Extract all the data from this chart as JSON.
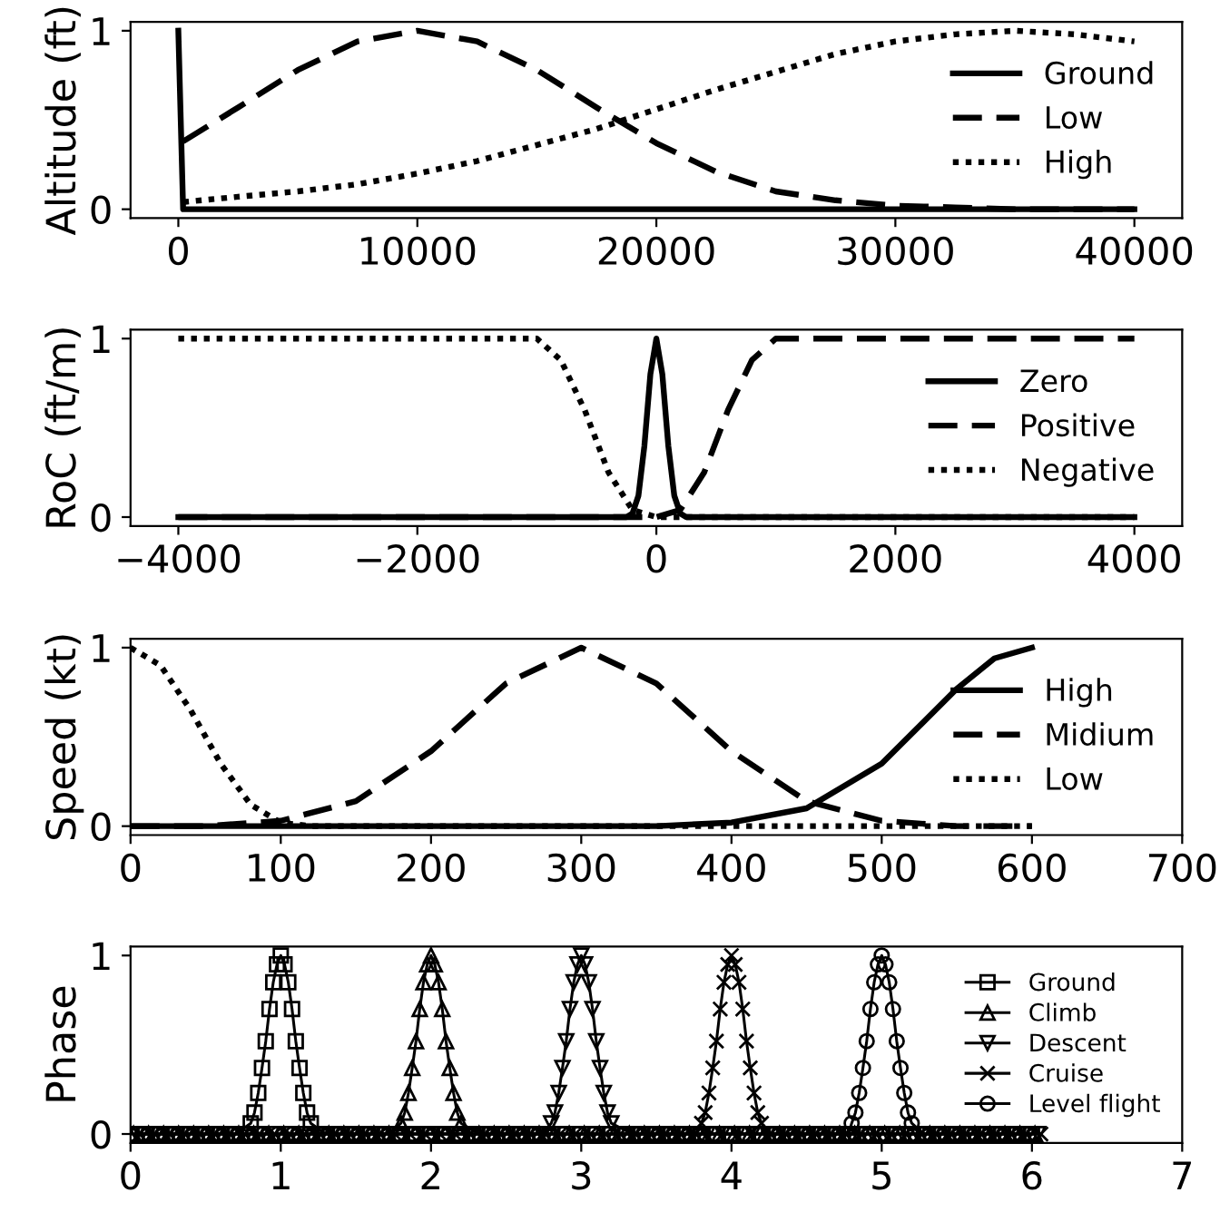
{
  "chart_data": [
    {
      "type": "line",
      "ylabel": "Altitude (ft)",
      "xlim": [
        -2000,
        42000
      ],
      "xticks": [
        0,
        10000,
        20000,
        30000,
        40000
      ],
      "ylim": [
        -0.05,
        1.05
      ],
      "yticks": [
        0,
        1
      ],
      "legend": "center right",
      "grid": false,
      "series": [
        {
          "name": "Ground",
          "color": "#000000",
          "line_style": "solid",
          "x": [
            0,
            200,
            40000
          ],
          "values": [
            1,
            0,
            0
          ]
        },
        {
          "name": "Low",
          "color": "#000000",
          "line_style": "dashed",
          "x": [
            200,
            2500,
            5000,
            7500,
            10000,
            12500,
            15000,
            17500,
            20000,
            22500,
            25000,
            27500,
            30000,
            32500,
            35000,
            40000
          ],
          "values": [
            0.38,
            0.57,
            0.78,
            0.94,
            1,
            0.94,
            0.78,
            0.57,
            0.37,
            0.21,
            0.1,
            0.05,
            0.02,
            0.01,
            0,
            0
          ]
        },
        {
          "name": "High",
          "color": "#000000",
          "line_style": "dotted",
          "x": [
            200,
            2500,
            5000,
            7500,
            10000,
            12500,
            15000,
            17500,
            20000,
            22500,
            25000,
            27500,
            30000,
            32500,
            35000,
            37500,
            40000
          ],
          "values": [
            0.04,
            0.07,
            0.1,
            0.14,
            0.2,
            0.27,
            0.36,
            0.45,
            0.56,
            0.67,
            0.77,
            0.87,
            0.94,
            0.98,
            1,
            0.98,
            0.94
          ]
        }
      ]
    },
    {
      "type": "line",
      "ylabel": "RoC (ft/m)",
      "xlim": [
        -4400,
        4400
      ],
      "xticks": [
        -4000,
        -2000,
        0,
        2000,
        4000
      ],
      "ylim": [
        -0.05,
        1.05
      ],
      "yticks": [
        0,
        1
      ],
      "legend": "center right",
      "grid": false,
      "series": [
        {
          "name": "Zero",
          "color": "#000000",
          "line_style": "solid",
          "x": [
            -4000,
            -250,
            -200,
            -150,
            -100,
            -50,
            0,
            50,
            100,
            150,
            200,
            250,
            4000
          ],
          "values": [
            0,
            0,
            0.02,
            0.12,
            0.4,
            0.8,
            1,
            0.8,
            0.4,
            0.12,
            0.02,
            0,
            0
          ]
        },
        {
          "name": "Positive",
          "color": "#000000",
          "line_style": "dashed",
          "x": [
            -4000,
            0,
            200,
            400,
            600,
            800,
            1000,
            4000
          ],
          "values": [
            0,
            0,
            0.04,
            0.25,
            0.6,
            0.88,
            1,
            1
          ]
        },
        {
          "name": "Negative",
          "color": "#000000",
          "line_style": "dotted",
          "x": [
            -4000,
            -1000,
            -800,
            -600,
            -400,
            -200,
            0,
            4000
          ],
          "values": [
            1,
            1,
            0.88,
            0.6,
            0.25,
            0.04,
            0,
            0
          ]
        }
      ]
    },
    {
      "type": "line",
      "ylabel": "Speed (kt)",
      "xlim": [
        0,
        700
      ],
      "xticks": [
        0,
        100,
        200,
        300,
        400,
        500,
        600,
        700
      ],
      "ylim": [
        -0.05,
        1.05
      ],
      "yticks": [
        0,
        1
      ],
      "legend": "center right",
      "grid": false,
      "series": [
        {
          "name": "High",
          "color": "#000000",
          "line_style": "solid",
          "x": [
            0,
            350,
            400,
            450,
            500,
            525,
            550,
            575,
            600
          ],
          "values": [
            0,
            0,
            0.02,
            0.1,
            0.35,
            0.56,
            0.77,
            0.94,
            1
          ]
        },
        {
          "name": "Midium",
          "color": "#000000",
          "line_style": "dashed",
          "x": [
            0,
            50,
            100,
            150,
            200,
            250,
            300,
            350,
            400,
            450,
            500,
            550,
            600
          ],
          "values": [
            0,
            0,
            0.03,
            0.14,
            0.42,
            0.8,
            1,
            0.8,
            0.42,
            0.14,
            0.03,
            0,
            0
          ]
        },
        {
          "name": "Low",
          "color": "#000000",
          "line_style": "dotted",
          "x": [
            0,
            20,
            40,
            60,
            80,
            100,
            120,
            600
          ],
          "values": [
            1,
            0.9,
            0.65,
            0.35,
            0.12,
            0.02,
            0,
            0
          ]
        }
      ]
    },
    {
      "type": "line",
      "ylabel": "Phase",
      "xlim": [
        0,
        7
      ],
      "xticks": [
        0,
        1,
        2,
        3,
        4,
        5,
        6,
        7
      ],
      "ylim": [
        -0.05,
        1.05
      ],
      "yticks": [
        0,
        1
      ],
      "legend": "center right",
      "grid": false,
      "series": [
        {
          "name": "Ground",
          "color": "#000000",
          "line_style": "solid",
          "marker": "square",
          "x": [
            0,
            0.1,
            0.2,
            0.3,
            0.4,
            0.5,
            0.6,
            0.7,
            0.8,
            0.825,
            0.85,
            0.875,
            0.9,
            0.925,
            0.95,
            0.975,
            1,
            1.025,
            1.05,
            1.075,
            1.1,
            1.125,
            1.15,
            1.175,
            1.2,
            1.3,
            1.4,
            1.5,
            1.6,
            1.7,
            1.8,
            1.9,
            2,
            2.1,
            2.2,
            2.3,
            2.4,
            2.5,
            2.6,
            2.7,
            2.8,
            2.9,
            3,
            3.1,
            3.2,
            3.3,
            3.4,
            3.5,
            3.6,
            3.7,
            3.8,
            3.9,
            4,
            4.1,
            4.2,
            4.3,
            4.4,
            4.5,
            4.6,
            4.7,
            4.8,
            4.9,
            5,
            5.1,
            5.2,
            5.3,
            5.4,
            5.5,
            5.6,
            5.7,
            5.8,
            5.9,
            6
          ],
          "values": [
            0,
            0,
            0,
            0,
            0,
            0,
            0,
            0,
            0.06,
            0.12,
            0.23,
            0.37,
            0.52,
            0.7,
            0.85,
            0.95,
            1,
            0.95,
            0.85,
            0.7,
            0.52,
            0.37,
            0.23,
            0.12,
            0.06,
            0,
            0,
            0,
            0,
            0,
            0,
            0,
            0,
            0,
            0,
            0,
            0,
            0,
            0,
            0,
            0,
            0,
            0,
            0,
            0,
            0,
            0,
            0,
            0,
            0,
            0,
            0,
            0,
            0,
            0,
            0,
            0,
            0,
            0,
            0,
            0,
            0,
            0,
            0,
            0,
            0,
            0,
            0,
            0,
            0,
            0,
            0,
            0
          ]
        },
        {
          "name": "Climb",
          "color": "#000000",
          "line_style": "solid",
          "marker": "triangle",
          "x": [
            0.02,
            0.12,
            0.22,
            0.32,
            0.42,
            0.52,
            0.62,
            0.72,
            0.82,
            0.92,
            1.02,
            1.12,
            1.22,
            1.32,
            1.42,
            1.52,
            1.62,
            1.72,
            1.8,
            1.825,
            1.85,
            1.875,
            1.9,
            1.925,
            1.95,
            1.975,
            2,
            2.025,
            2.05,
            2.075,
            2.1,
            2.125,
            2.15,
            2.175,
            2.2,
            2.32,
            2.42,
            2.52,
            2.62,
            2.72,
            2.82,
            2.92,
            3.02,
            3.12,
            3.22,
            3.32,
            3.42,
            3.52,
            3.62,
            3.72,
            3.82,
            3.92,
            4.02,
            4.12,
            4.22,
            4.32,
            4.42,
            4.52,
            4.62,
            4.72,
            4.82,
            4.92,
            5.02,
            5.12,
            5.22,
            5.32,
            5.42,
            5.52,
            5.62,
            5.72,
            5.82,
            5.92,
            6.02
          ],
          "values": [
            0,
            0,
            0,
            0,
            0,
            0,
            0,
            0,
            0,
            0,
            0,
            0,
            0,
            0,
            0,
            0,
            0,
            0,
            0.06,
            0.12,
            0.23,
            0.37,
            0.52,
            0.7,
            0.85,
            0.95,
            1,
            0.95,
            0.85,
            0.7,
            0.52,
            0.37,
            0.23,
            0.12,
            0.06,
            0,
            0,
            0,
            0,
            0,
            0,
            0,
            0,
            0,
            0,
            0,
            0,
            0,
            0,
            0,
            0,
            0,
            0,
            0,
            0,
            0,
            0,
            0,
            0,
            0,
            0,
            0,
            0,
            0,
            0,
            0,
            0,
            0,
            0,
            0,
            0,
            0,
            0
          ]
        },
        {
          "name": "Descent",
          "color": "#000000",
          "line_style": "solid",
          "marker": "triangle-down",
          "x": [
            0.04,
            0.14,
            0.24,
            0.34,
            0.44,
            0.54,
            0.64,
            0.74,
            0.84,
            0.94,
            1.04,
            1.14,
            1.24,
            1.34,
            1.44,
            1.54,
            1.64,
            1.74,
            1.84,
            1.94,
            2.04,
            2.14,
            2.24,
            2.34,
            2.44,
            2.54,
            2.64,
            2.74,
            2.8,
            2.825,
            2.85,
            2.875,
            2.9,
            2.925,
            2.95,
            2.975,
            3,
            3.025,
            3.05,
            3.075,
            3.1,
            3.125,
            3.15,
            3.175,
            3.2,
            3.34,
            3.44,
            3.54,
            3.64,
            3.74,
            3.84,
            3.94,
            4.04,
            4.14,
            4.24,
            4.34,
            4.44,
            4.54,
            4.64,
            4.74,
            4.84,
            4.94,
            5.04,
            5.14,
            5.24,
            5.34,
            5.44,
            5.54,
            5.64,
            5.74,
            5.84,
            5.94,
            6.04
          ],
          "values": [
            0,
            0,
            0,
            0,
            0,
            0,
            0,
            0,
            0,
            0,
            0,
            0,
            0,
            0,
            0,
            0,
            0,
            0,
            0,
            0,
            0,
            0,
            0,
            0,
            0,
            0,
            0,
            0,
            0.06,
            0.12,
            0.23,
            0.37,
            0.52,
            0.7,
            0.85,
            0.95,
            1,
            0.95,
            0.85,
            0.7,
            0.52,
            0.37,
            0.23,
            0.12,
            0.06,
            0,
            0,
            0,
            0,
            0,
            0,
            0,
            0,
            0,
            0,
            0,
            0,
            0,
            0,
            0,
            0,
            0,
            0,
            0,
            0,
            0,
            0,
            0,
            0,
            0,
            0,
            0,
            0
          ]
        },
        {
          "name": "Cruise",
          "color": "#000000",
          "line_style": "solid",
          "marker": "cross",
          "x": [
            0.06,
            0.16,
            0.26,
            0.36,
            0.46,
            0.56,
            0.66,
            0.76,
            0.86,
            0.96,
            1.06,
            1.16,
            1.26,
            1.36,
            1.46,
            1.56,
            1.66,
            1.76,
            1.86,
            1.96,
            2.06,
            2.16,
            2.26,
            2.36,
            2.46,
            2.56,
            2.66,
            2.76,
            2.86,
            2.96,
            3.06,
            3.16,
            3.26,
            3.36,
            3.46,
            3.56,
            3.66,
            3.76,
            3.8,
            3.825,
            3.85,
            3.875,
            3.9,
            3.925,
            3.95,
            3.975,
            4,
            4.025,
            4.05,
            4.075,
            4.1,
            4.125,
            4.15,
            4.175,
            4.2,
            4.26,
            4.36,
            4.46,
            4.56,
            4.66,
            4.76,
            4.86,
            4.96,
            5.06,
            5.16,
            5.26,
            5.36,
            5.46,
            5.56,
            5.66,
            5.76,
            5.86,
            5.96,
            6.06
          ],
          "values": [
            0,
            0,
            0,
            0,
            0,
            0,
            0,
            0,
            0,
            0,
            0,
            0,
            0,
            0,
            0,
            0,
            0,
            0,
            0,
            0,
            0,
            0,
            0,
            0,
            0,
            0,
            0,
            0,
            0,
            0,
            0,
            0,
            0,
            0,
            0,
            0,
            0,
            0,
            0.06,
            0.12,
            0.23,
            0.37,
            0.52,
            0.7,
            0.85,
            0.95,
            1,
            0.95,
            0.85,
            0.7,
            0.52,
            0.37,
            0.23,
            0.12,
            0.06,
            0,
            0,
            0,
            0,
            0,
            0,
            0,
            0,
            0,
            0,
            0,
            0,
            0,
            0,
            0,
            0,
            0,
            0,
            0
          ]
        },
        {
          "name": "Level flight",
          "color": "#000000",
          "line_style": "solid",
          "marker": "circle",
          "x": [
            0.08,
            0.18,
            0.28,
            0.38,
            0.48,
            0.58,
            0.68,
            0.78,
            0.88,
            0.98,
            1.08,
            1.18,
            1.28,
            1.38,
            1.48,
            1.58,
            1.68,
            1.78,
            1.88,
            1.98,
            2.08,
            2.18,
            2.28,
            2.38,
            2.48,
            2.58,
            2.68,
            2.78,
            2.88,
            2.98,
            3.08,
            3.18,
            3.28,
            3.38,
            3.48,
            3.58,
            3.68,
            3.78,
            3.88,
            3.98,
            4.08,
            4.18,
            4.28,
            4.38,
            4.48,
            4.58,
            4.68,
            4.78,
            4.8,
            4.825,
            4.85,
            4.875,
            4.9,
            4.925,
            4.95,
            4.975,
            5,
            5.025,
            5.05,
            5.075,
            5.1,
            5.125,
            5.15,
            5.175,
            5.2,
            5.28,
            5.38,
            5.48,
            5.58,
            5.68,
            5.78,
            5.88,
            5.98
          ],
          "values": [
            0,
            0,
            0,
            0,
            0,
            0,
            0,
            0,
            0,
            0,
            0,
            0,
            0,
            0,
            0,
            0,
            0,
            0,
            0,
            0,
            0,
            0,
            0,
            0,
            0,
            0,
            0,
            0,
            0,
            0,
            0,
            0,
            0,
            0,
            0,
            0,
            0,
            0,
            0,
            0,
            0,
            0,
            0,
            0,
            0,
            0,
            0,
            0,
            0.06,
            0.12,
            0.23,
            0.37,
            0.52,
            0.7,
            0.85,
            0.95,
            1,
            0.95,
            0.85,
            0.7,
            0.52,
            0.37,
            0.23,
            0.12,
            0.06,
            0,
            0,
            0,
            0,
            0,
            0,
            0,
            0
          ]
        }
      ]
    }
  ]
}
